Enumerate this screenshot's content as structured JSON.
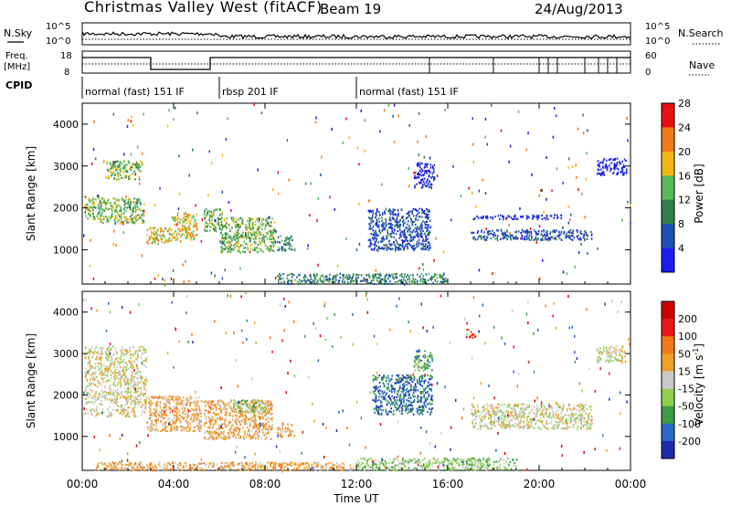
{
  "header": {
    "title": "Christmas Valley West (fitACF)",
    "beam": "Beam 19",
    "date": "24/Aug/2013"
  },
  "noise_panel": {
    "left_label": "N.Sky",
    "right_label": "N.Search",
    "ticks": [
      "10^5",
      "10^0"
    ]
  },
  "freq_panel": {
    "left_label_1": "Freq.",
    "left_label_2": "[MHz]",
    "left_ticks": [
      "18",
      "8"
    ],
    "right_label": "Nave",
    "right_ticks": [
      "60",
      "0"
    ]
  },
  "cpid": {
    "label": "CPID",
    "segments": [
      {
        "text": "normal (fast) 151 IF",
        "start_hour": 0
      },
      {
        "text": "rbsp 201 IF",
        "start_hour": 6
      },
      {
        "text": "normal (fast) 151 IF",
        "start_hour": 12
      }
    ]
  },
  "chart_data": [
    {
      "type": "heatmap",
      "title": "",
      "quantity": "Power",
      "ylabel": "Slant Range [km]",
      "ylim": [
        180,
        4500
      ],
      "yticks": [
        "1000",
        "2000",
        "3000",
        "4000"
      ],
      "xlim_hours": [
        0,
        24
      ],
      "colorbar": {
        "label": "Power [dB]",
        "ticks": [
          "4",
          "8",
          "12",
          "16",
          "20",
          "24",
          "28"
        ],
        "colors": [
          "#1c1cf0",
          "#1d4fb4",
          "#2e7f4a",
          "#58b85a",
          "#f2b810",
          "#f07818",
          "#e81010"
        ]
      },
      "echo_regions": [
        {
          "t0": 0.1,
          "t1": 0.8,
          "r0": 1750,
          "r1": 2300,
          "level": 3
        },
        {
          "t0": 0.7,
          "t1": 2.7,
          "r0": 1650,
          "r1": 2250,
          "level": 3
        },
        {
          "t0": 1.0,
          "t1": 2.6,
          "r0": 2700,
          "r1": 3150,
          "level": 3
        },
        {
          "t0": 2.8,
          "t1": 3.9,
          "r0": 1150,
          "r1": 1550,
          "level": 4
        },
        {
          "t0": 3.9,
          "t1": 5.0,
          "r0": 1250,
          "r1": 1900,
          "level": 4
        },
        {
          "t0": 5.3,
          "t1": 6.1,
          "r0": 1450,
          "r1": 2000,
          "level": 3
        },
        {
          "t0": 6.0,
          "t1": 8.4,
          "r0": 950,
          "r1": 1800,
          "level": 3
        },
        {
          "t0": 8.5,
          "t1": 9.2,
          "r0": 1000,
          "r1": 1350,
          "level": 2
        },
        {
          "t0": 12.5,
          "t1": 15.2,
          "r0": 1000,
          "r1": 2000,
          "level": 1
        },
        {
          "t0": 14.5,
          "t1": 15.4,
          "r0": 2500,
          "r1": 3100,
          "level": 0
        },
        {
          "t0": 17.0,
          "t1": 22.3,
          "r0": 1250,
          "r1": 1500,
          "level": 1
        },
        {
          "t0": 17.0,
          "t1": 21.0,
          "r0": 1750,
          "r1": 1850,
          "level": 0
        },
        {
          "t0": 22.5,
          "t1": 23.8,
          "r0": 2800,
          "r1": 3200,
          "level": 0
        },
        {
          "t0": 8.5,
          "t1": 16.0,
          "r0": 200,
          "r1": 450,
          "level": 2
        }
      ]
    },
    {
      "type": "heatmap",
      "title": "",
      "quantity": "Velocity",
      "ylabel": "Slant Range [km]",
      "ylim": [
        180,
        4500
      ],
      "yticks": [
        "1000",
        "2000",
        "3000",
        "4000"
      ],
      "xlim_hours": [
        0,
        24
      ],
      "colorbar": {
        "label": "Velocity [m s-1]",
        "label_main": "Velocity [m s",
        "label_sup": "-1",
        "label_end": "]",
        "ticks": [
          "200",
          "100",
          "50",
          "15",
          "-15",
          "-50",
          "-100",
          "-200"
        ],
        "colors": [
          "#1c2ca8",
          "#2868c8",
          "#3c9c44",
          "#8cd04c",
          "#c8c8c8",
          "#f0a028",
          "#f07818",
          "#e81818",
          "#d00000"
        ]
      },
      "echo_regions": [
        {
          "t0": 0.1,
          "t1": 2.8,
          "r0": 1500,
          "r1": 3200,
          "level": 4
        },
        {
          "t0": 2.8,
          "t1": 5.2,
          "r0": 1150,
          "r1": 2000,
          "level": 5
        },
        {
          "t0": 5.3,
          "t1": 8.3,
          "r0": 950,
          "r1": 1900,
          "level": 5
        },
        {
          "t0": 6.5,
          "t1": 8.0,
          "r0": 1600,
          "r1": 1900,
          "level": 3
        },
        {
          "t0": 8.5,
          "t1": 9.2,
          "r0": 1000,
          "r1": 1350,
          "level": 5
        },
        {
          "t0": 12.7,
          "t1": 15.3,
          "r0": 1550,
          "r1": 2500,
          "level": 1
        },
        {
          "t0": 14.5,
          "t1": 15.3,
          "r0": 2600,
          "r1": 3100,
          "level": 2
        },
        {
          "t0": 17.0,
          "t1": 22.3,
          "r0": 1200,
          "r1": 1800,
          "level": 4
        },
        {
          "t0": 22.5,
          "t1": 23.8,
          "r0": 2800,
          "r1": 3200,
          "level": 4
        },
        {
          "t0": 16.8,
          "t1": 17.2,
          "r0": 3400,
          "r1": 3600,
          "level": 7
        },
        {
          "t0": 0.5,
          "t1": 12.0,
          "r0": 200,
          "r1": 400,
          "level": 5
        },
        {
          "t0": 12.0,
          "t1": 19.0,
          "r0": 200,
          "r1": 500,
          "level": 3
        }
      ]
    }
  ],
  "x_axis": {
    "label": "Time UT",
    "ticks": [
      "00:00",
      "04:00",
      "08:00",
      "12:00",
      "16:00",
      "20:00",
      "00:00"
    ]
  }
}
